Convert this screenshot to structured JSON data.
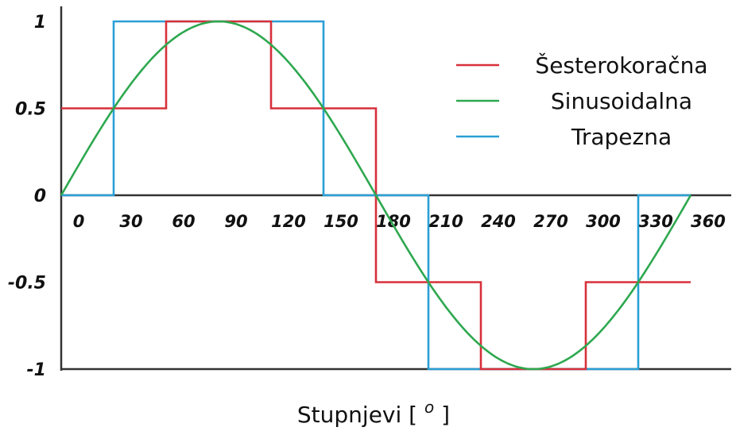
{
  "chart_data": {
    "type": "line",
    "xlabel": "Stupnjevi [",
    "xlabel_sup": "o",
    "xlabel_end": "]",
    "ylabel": "",
    "xlim": [
      0,
      360
    ],
    "ylim": [
      -1,
      1
    ],
    "x_ticks": [
      "0",
      "30",
      "60",
      "90",
      "120",
      "150",
      "180",
      "210",
      "240",
      "270",
      "300",
      "330",
      "360"
    ],
    "y_ticks": [
      {
        "value": 1,
        "label": "1"
      },
      {
        "value": 0.5,
        "label": "0.5"
      },
      {
        "value": 0,
        "label": "0"
      },
      {
        "value": -0.5,
        "label": "-0.5"
      },
      {
        "value": -1,
        "label": "-1"
      }
    ],
    "legend_position": "top-right",
    "grid": false,
    "series": [
      {
        "name": "Šesterokoračna",
        "color": "#d7303a",
        "x": [
          0,
          60,
          60,
          120,
          120,
          180,
          180,
          240,
          240,
          300,
          300,
          360
        ],
        "y": [
          0.5,
          0.5,
          1,
          1,
          0.5,
          0.5,
          -0.5,
          -0.5,
          -1,
          -1,
          -0.5,
          -0.5
        ]
      },
      {
        "name": "Sinusoidalna",
        "color": "#2ea84f",
        "function": "sin",
        "x_range": [
          0,
          360
        ]
      },
      {
        "name": "Trapezna",
        "color": "#2a9fd6",
        "x": [
          0,
          30,
          30,
          150,
          150,
          210,
          210,
          330,
          330,
          360
        ],
        "y": [
          0,
          0,
          1,
          1,
          0,
          0,
          -1,
          -1,
          0,
          0
        ]
      }
    ]
  }
}
